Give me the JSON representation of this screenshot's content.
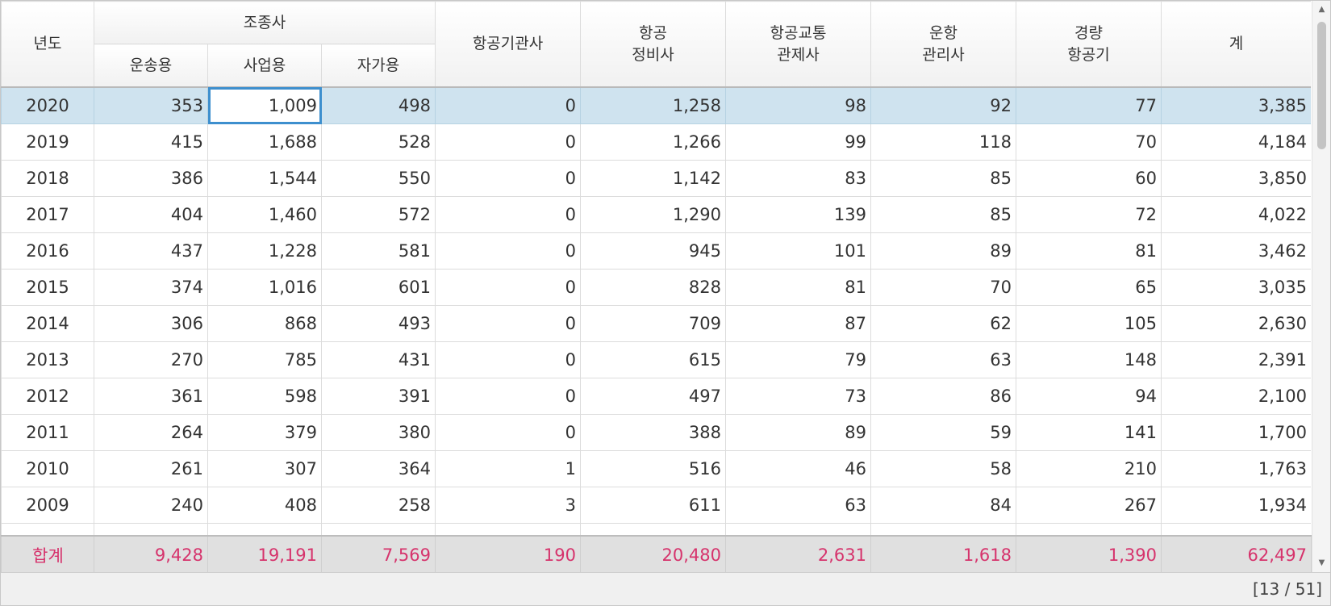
{
  "header": {
    "year": "년도",
    "pilot_group": "조종사",
    "pilot_transport": "운송용",
    "pilot_business": "사업용",
    "pilot_private": "자가용",
    "flight_engineer": "항공기관사",
    "mechanic_l1": "항공",
    "mechanic_l2": "정비사",
    "controller_l1": "항공교통",
    "controller_l2": "관제사",
    "dispatcher_l1": "운항",
    "dispatcher_l2": "관리사",
    "light_l1": "경량",
    "light_l2": "항공기",
    "total": "계"
  },
  "rows": [
    [
      "2020",
      "353",
      "1,009",
      "498",
      "0",
      "1,258",
      "98",
      "92",
      "77",
      "3,385"
    ],
    [
      "2019",
      "415",
      "1,688",
      "528",
      "0",
      "1,266",
      "99",
      "118",
      "70",
      "4,184"
    ],
    [
      "2018",
      "386",
      "1,544",
      "550",
      "0",
      "1,142",
      "83",
      "85",
      "60",
      "3,850"
    ],
    [
      "2017",
      "404",
      "1,460",
      "572",
      "0",
      "1,290",
      "139",
      "85",
      "72",
      "4,022"
    ],
    [
      "2016",
      "437",
      "1,228",
      "581",
      "0",
      "945",
      "101",
      "89",
      "81",
      "3,462"
    ],
    [
      "2015",
      "374",
      "1,016",
      "601",
      "0",
      "828",
      "81",
      "70",
      "65",
      "3,035"
    ],
    [
      "2014",
      "306",
      "868",
      "493",
      "0",
      "709",
      "87",
      "62",
      "105",
      "2,630"
    ],
    [
      "2013",
      "270",
      "785",
      "431",
      "0",
      "615",
      "79",
      "63",
      "148",
      "2,391"
    ],
    [
      "2012",
      "361",
      "598",
      "391",
      "0",
      "497",
      "73",
      "86",
      "94",
      "2,100"
    ],
    [
      "2011",
      "264",
      "379",
      "380",
      "0",
      "388",
      "89",
      "59",
      "141",
      "1,700"
    ],
    [
      "2010",
      "261",
      "307",
      "364",
      "1",
      "516",
      "46",
      "58",
      "210",
      "1,763"
    ],
    [
      "2009",
      "240",
      "408",
      "258",
      "3",
      "611",
      "63",
      "84",
      "267",
      "1,934"
    ],
    [
      "",
      "",
      "",
      "",
      "",
      "",
      "",
      "",
      "",
      ""
    ]
  ],
  "total_row": [
    "합계",
    "9,428",
    "19,191",
    "7,569",
    "190",
    "20,480",
    "2,631",
    "1,618",
    "1,390",
    "62,497"
  ],
  "pager": "[13 / 51]",
  "colors": {
    "selected_row": "#cfe3ef",
    "focus_border": "#3d8fce",
    "total_text": "#d6336c"
  },
  "icons": {
    "scroll_up": "up-arrow-icon",
    "scroll_down": "down-arrow-icon"
  }
}
